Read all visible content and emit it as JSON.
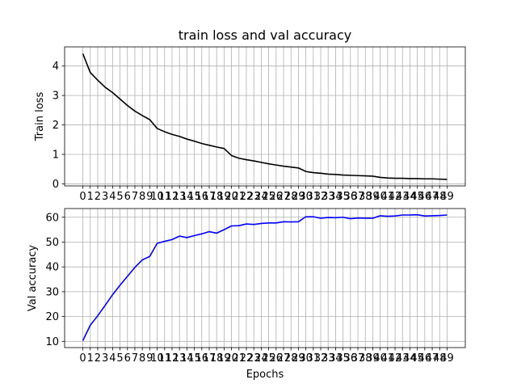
{
  "figure": {
    "title": "train loss and val accuracy"
  },
  "chart_data": [
    {
      "type": "line",
      "title": "train loss and val accuracy",
      "xlabel": "",
      "ylabel": "Train loss",
      "grid": true,
      "color": "#000000",
      "x": [
        0,
        1,
        2,
        3,
        4,
        5,
        6,
        7,
        8,
        9,
        10,
        11,
        12,
        13,
        14,
        15,
        16,
        17,
        18,
        19,
        20,
        21,
        22,
        23,
        24,
        25,
        26,
        27,
        28,
        29,
        30,
        31,
        32,
        33,
        34,
        35,
        36,
        37,
        38,
        39,
        40,
        41,
        42,
        43,
        44,
        45,
        46,
        47,
        48,
        49
      ],
      "x_ticks": [
        0,
        1,
        2,
        3,
        4,
        5,
        6,
        7,
        8,
        9,
        10,
        11,
        12,
        13,
        14,
        15,
        16,
        17,
        18,
        19,
        20,
        21,
        22,
        23,
        24,
        25,
        26,
        27,
        28,
        29,
        30,
        31,
        32,
        33,
        34,
        35,
        36,
        37,
        38,
        39,
        40,
        41,
        42,
        43,
        44,
        45,
        46,
        47,
        48,
        49
      ],
      "series": [
        {
          "values": [
            4.42,
            3.78,
            3.52,
            3.28,
            3.1,
            2.88,
            2.66,
            2.47,
            2.32,
            2.18,
            1.88,
            1.77,
            1.68,
            1.61,
            1.52,
            1.45,
            1.37,
            1.31,
            1.25,
            1.2,
            0.96,
            0.87,
            0.82,
            0.78,
            0.73,
            0.68,
            0.64,
            0.6,
            0.57,
            0.54,
            0.42,
            0.38,
            0.36,
            0.33,
            0.32,
            0.3,
            0.29,
            0.28,
            0.27,
            0.26,
            0.22,
            0.2,
            0.19,
            0.19,
            0.18,
            0.18,
            0.17,
            0.17,
            0.16,
            0.15
          ]
        }
      ],
      "ylim": [
        -0.07,
        4.65
      ],
      "y_ticks": [
        0,
        1,
        2,
        3,
        4
      ]
    },
    {
      "type": "line",
      "title": "",
      "xlabel": "Epochs",
      "ylabel": "Val accuracy",
      "grid": true,
      "color": "#0000ff",
      "x": [
        0,
        1,
        2,
        3,
        4,
        5,
        6,
        7,
        8,
        9,
        10,
        11,
        12,
        13,
        14,
        15,
        16,
        17,
        18,
        19,
        20,
        21,
        22,
        23,
        24,
        25,
        26,
        27,
        28,
        29,
        30,
        31,
        32,
        33,
        34,
        35,
        36,
        37,
        38,
        39,
        40,
        41,
        42,
        43,
        44,
        45,
        46,
        47,
        48,
        49
      ],
      "x_ticks": [
        0,
        1,
        2,
        3,
        4,
        5,
        6,
        7,
        8,
        9,
        10,
        11,
        12,
        13,
        14,
        15,
        16,
        17,
        18,
        19,
        20,
        21,
        22,
        23,
        24,
        25,
        26,
        27,
        28,
        29,
        30,
        31,
        32,
        33,
        34,
        35,
        36,
        37,
        38,
        39,
        40,
        41,
        42,
        43,
        44,
        45,
        46,
        47,
        48,
        49
      ],
      "series": [
        {
          "values": [
            10.3,
            16.5,
            20.3,
            24.5,
            28.8,
            32.6,
            36.2,
            39.8,
            42.8,
            44.2,
            49.5,
            50.3,
            51.0,
            52.4,
            51.8,
            52.6,
            53.3,
            54.2,
            53.6,
            55.0,
            56.5,
            56.6,
            57.3,
            57.1,
            57.5,
            57.7,
            57.7,
            58.2,
            58.1,
            58.2,
            60.2,
            60.2,
            59.6,
            59.9,
            59.8,
            60.0,
            59.4,
            59.7,
            59.6,
            59.6,
            60.6,
            60.4,
            60.5,
            60.9,
            60.9,
            61.0,
            60.5,
            60.6,
            60.7,
            60.9
          ]
        }
      ],
      "ylim": [
        7.5,
        63.5
      ],
      "y_ticks": [
        10,
        20,
        30,
        40,
        50,
        60
      ]
    }
  ]
}
